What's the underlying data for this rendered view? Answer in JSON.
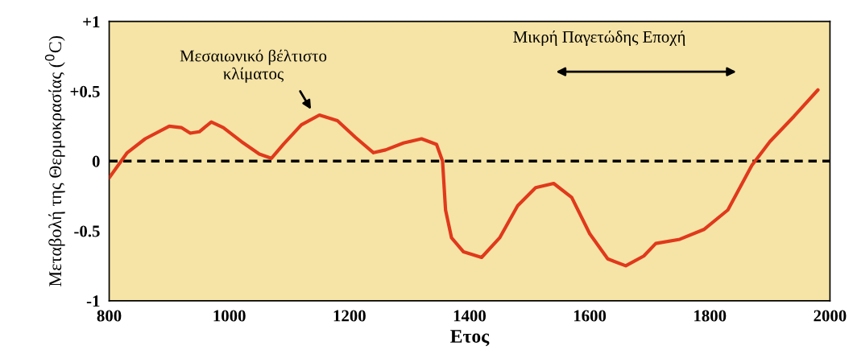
{
  "chart_data": {
    "type": "line",
    "xlabel": "Ετος",
    "ylabel": "Μεταβολή της Θερμοκρασίας ($^{0}$C)",
    "x": [
      800,
      830,
      860,
      900,
      920,
      935,
      950,
      970,
      990,
      1020,
      1050,
      1070,
      1090,
      1120,
      1150,
      1180,
      1210,
      1240,
      1260,
      1290,
      1320,
      1345,
      1355,
      1360,
      1370,
      1390,
      1420,
      1450,
      1480,
      1510,
      1540,
      1570,
      1600,
      1630,
      1660,
      1690,
      1710,
      1750,
      1790,
      1830,
      1870,
      1900,
      1940,
      1980
    ],
    "series": [
      {
        "color": "#e0391c",
        "values": [
          -0.12,
          0.06,
          0.16,
          0.25,
          0.24,
          0.2,
          0.21,
          0.28,
          0.24,
          0.14,
          0.05,
          0.02,
          0.12,
          0.26,
          0.33,
          0.29,
          0.17,
          0.06,
          0.08,
          0.13,
          0.16,
          0.12,
          0,
          -0.35,
          -0.55,
          -0.65,
          -0.69,
          -0.55,
          -0.32,
          -0.19,
          -0.16,
          -0.26,
          -0.52,
          -0.7,
          -0.75,
          -0.68,
          -0.59,
          -0.56,
          -0.49,
          -0.35,
          -0.03,
          0.14,
          0.32,
          0.51
        ]
      }
    ],
    "xlim": [
      800,
      2000
    ],
    "xticks": [
      800,
      1000,
      1200,
      1400,
      1600,
      1800,
      2000
    ],
    "ylim": [
      -1,
      1
    ],
    "yticks": [
      {
        "value": 1,
        "label": "+1"
      },
      {
        "value": 0.5,
        "label": "+0.5"
      },
      0,
      -0.5,
      -1
    ],
    "ref_lines": [
      {
        "axis": "y",
        "value": 0,
        "color": "#000000",
        "line_style": "dashed"
      }
    ],
    "annotations": [
      "Μεσαιωνικό βέλτιστο\nκλίματος",
      "Μικρή Παγετώδης Εποχή"
    ],
    "grid": false,
    "legend": false
  }
}
